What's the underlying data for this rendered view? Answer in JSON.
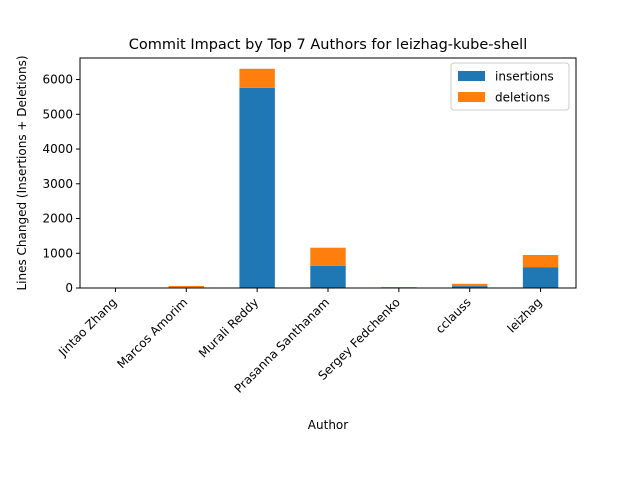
{
  "chart_data": {
    "type": "bar",
    "stacked": true,
    "title": "Commit Impact by Top 7 Authors for leizhag-kube-shell",
    "xlabel": "Author",
    "ylabel": "Lines Changed (Insertions + Deletions)",
    "categories": [
      "Jintao Zhang",
      "Marcos Amorim",
      "Murali Reddy",
      "Prasanna Santhanam",
      "Sergey Fedchenko",
      "cclauss",
      "leizhag"
    ],
    "series": [
      {
        "name": "insertions",
        "color": "#1f77b4",
        "values": [
          2,
          20,
          5760,
          640,
          15,
          55,
          590
        ]
      },
      {
        "name": "deletions",
        "color": "#ff7f0e",
        "values": [
          2,
          40,
          550,
          520,
          10,
          65,
          360
        ]
      }
    ],
    "ylim": [
      0,
      6620
    ],
    "yticks": [
      0,
      1000,
      2000,
      3000,
      4000,
      5000,
      6000
    ],
    "legend_position": "top-right",
    "grid": false
  }
}
